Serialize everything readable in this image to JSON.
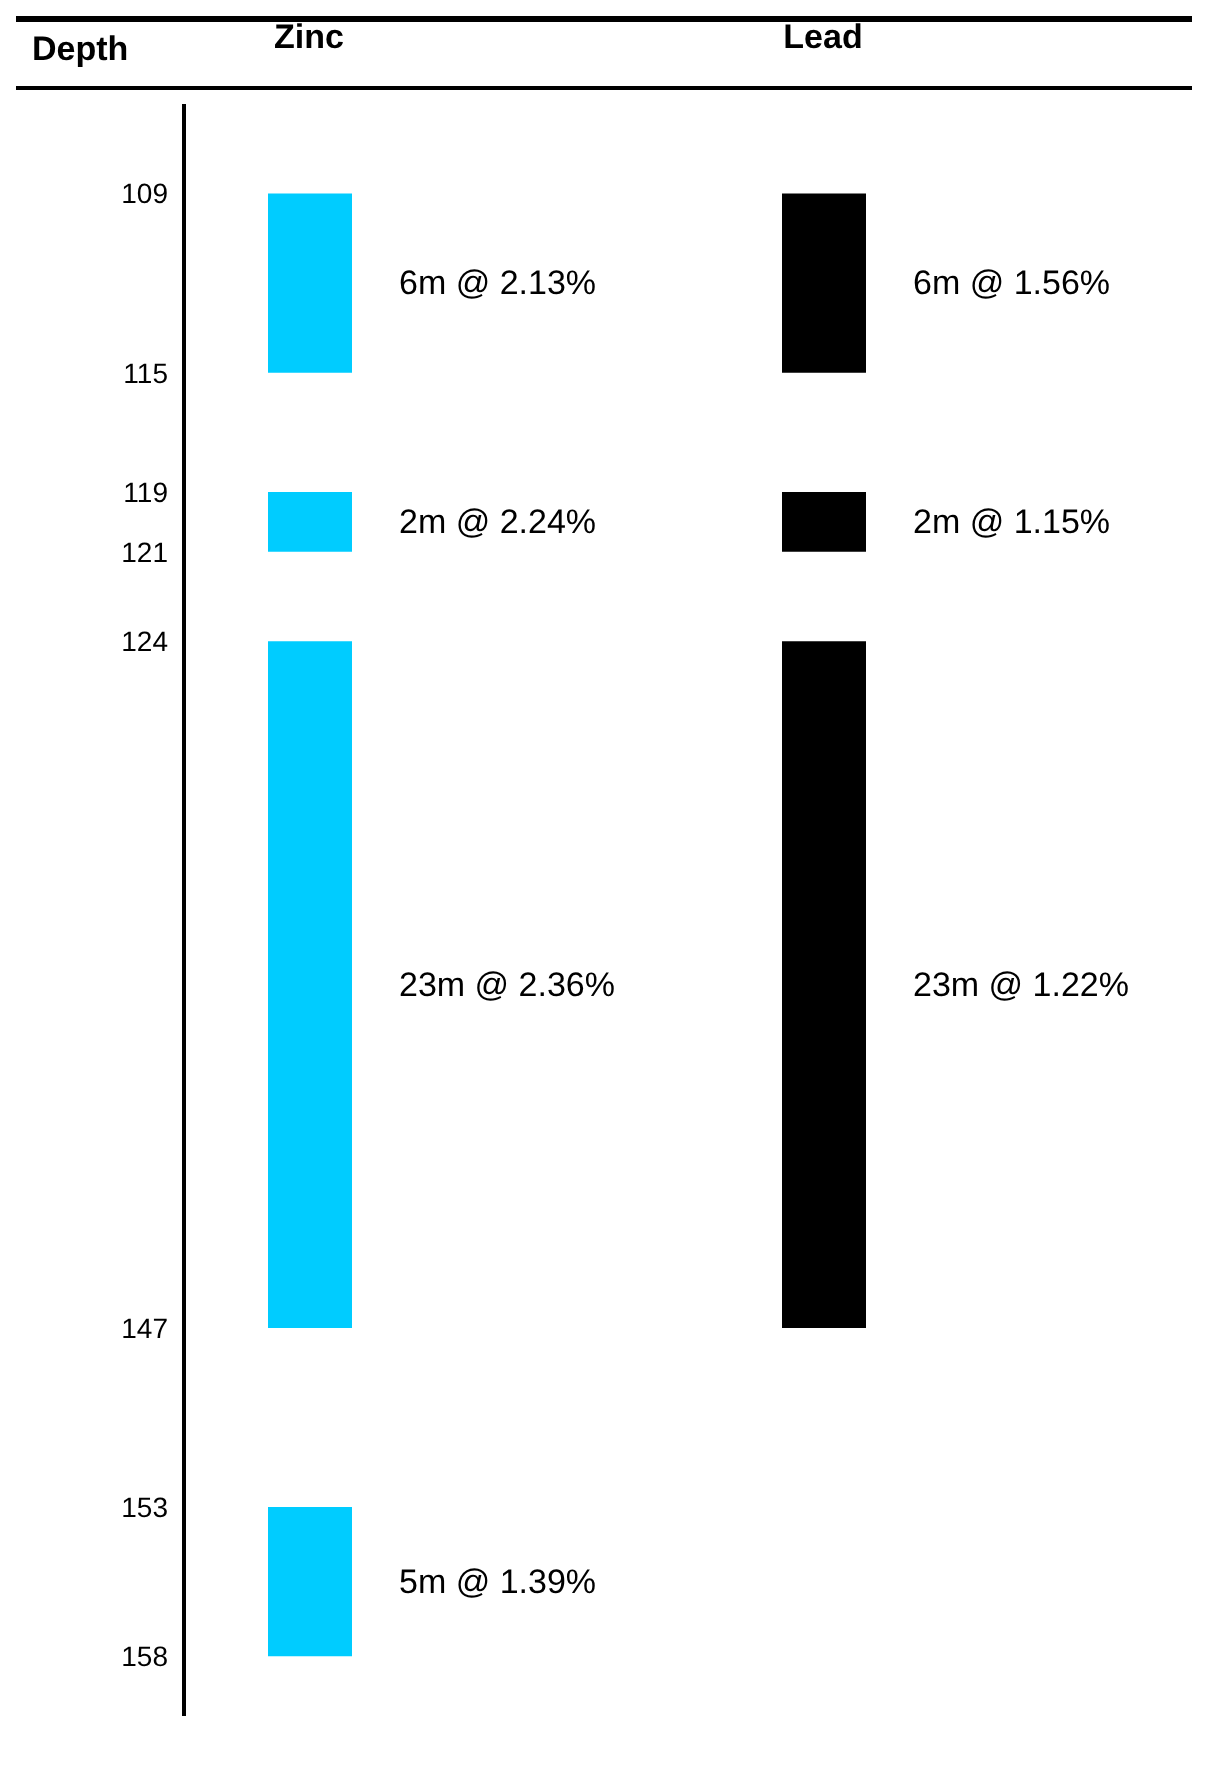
{
  "chart_data": {
    "type": "bar",
    "ylabel": "Depth",
    "categories": [
      "Zinc",
      "Lead"
    ],
    "ylim": [
      160,
      106
    ],
    "yticks": [
      109,
      115,
      119,
      121,
      124,
      147,
      153,
      158
    ],
    "grid": false,
    "legend": false,
    "series": [
      {
        "colors": [
          "#00ccff",
          "#000000"
        ],
        "base": [
          109,
          109
        ],
        "values": [
          6,
          6
        ]
      },
      {
        "colors": [
          "#00ccff",
          "#000000"
        ],
        "base": [
          119,
          119
        ],
        "values": [
          2,
          2
        ]
      },
      {
        "colors": [
          "#00ccff",
          "#000000"
        ],
        "base": [
          124,
          124
        ],
        "values": [
          23,
          23
        ]
      },
      {
        "colors": [
          "#00ccff",
          "#000000"
        ],
        "base": [
          153,
          null
        ],
        "values": [
          5,
          null
        ]
      }
    ],
    "annotations": [
      "6m @ 2.13%",
      "2m @ 2.24%",
      "23m @ 2.36%",
      "5m @ 1.39%",
      "6m @ 1.56%",
      "2m @ 1.15%",
      "23m @ 1.22%"
    ]
  }
}
